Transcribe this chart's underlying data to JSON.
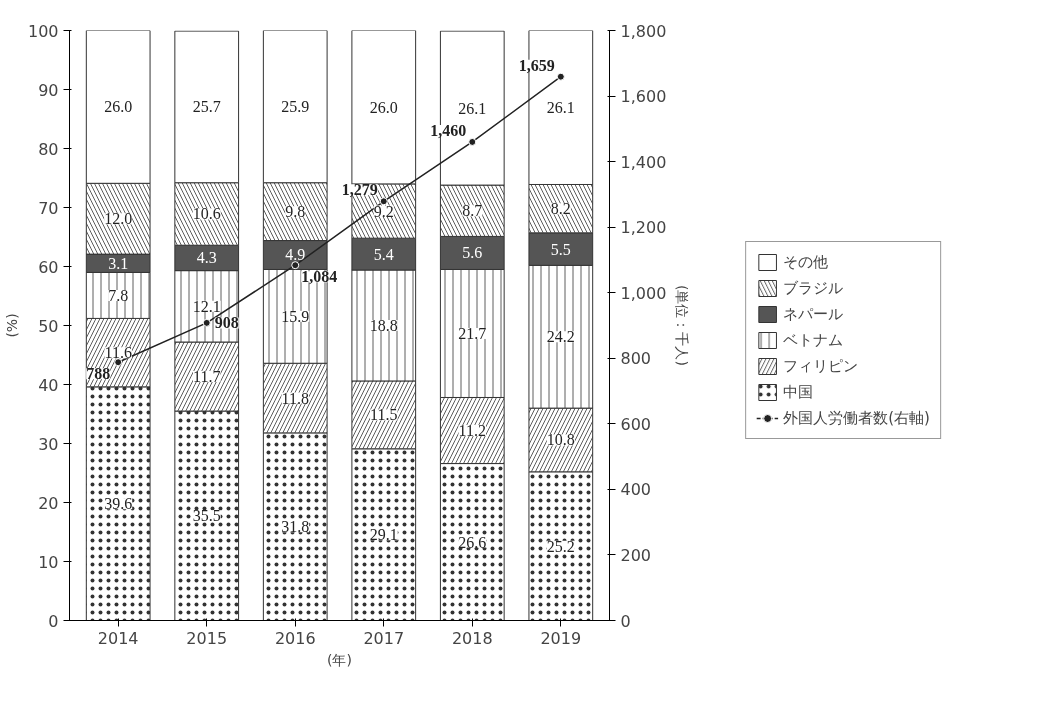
{
  "chart_data": {
    "type": "bar",
    "stacked": true,
    "categories": [
      "2014",
      "2015",
      "2016",
      "2017",
      "2018",
      "2019"
    ],
    "xlabel": "(年)",
    "ylabel": "(%)",
    "y2label": "(単位：千人)",
    "ylim": [
      0,
      100
    ],
    "yticks": [
      0,
      10,
      20,
      30,
      40,
      50,
      60,
      70,
      80,
      90,
      100
    ],
    "y2lim": [
      0,
      1800
    ],
    "y2ticks": [
      0,
      200,
      400,
      600,
      800,
      {
        "value": 1000,
        "label": "1,000"
      },
      {
        "value": 1200,
        "label": "1,200"
      },
      {
        "value": 1400,
        "label": "1,400"
      },
      {
        "value": 1600,
        "label": "1,600"
      },
      {
        "value": 1800,
        "label": "1,800"
      }
    ],
    "grid": false,
    "legend": "right",
    "data_labels": true,
    "series": [
      {
        "name": "中国",
        "color": "#ffffff",
        "values": [
          39.6,
          35.5,
          31.8,
          29.1,
          26.6,
          25.2
        ],
        "value_labels": [
          "39.6",
          "35.5",
          "31.8",
          "29.1",
          "26.6",
          "25.2"
        ]
      },
      {
        "name": "フィリピン",
        "color": "#ffffff",
        "values": [
          11.6,
          11.7,
          11.8,
          11.5,
          11.2,
          10.8
        ],
        "value_labels": [
          "11.6",
          "11.7",
          "11.8",
          "11.5",
          "11.2",
          "10.8"
        ]
      },
      {
        "name": "ベトナム",
        "color": "#ffffff",
        "values": [
          7.8,
          12.1,
          15.9,
          18.8,
          21.7,
          24.2
        ],
        "value_labels": [
          "7.8",
          "12.1",
          "15.9",
          "18.8",
          "21.7",
          "24.2"
        ]
      },
      {
        "name": "ネパール",
        "color": "#555555",
        "values": [
          3.1,
          4.3,
          4.9,
          5.4,
          5.6,
          5.5
        ],
        "value_labels": [
          "3.1",
          "4.3",
          "4.9",
          "5.4",
          "5.6",
          "5.5"
        ]
      },
      {
        "name": "ブラジル",
        "color": "#ffffff",
        "values": [
          12.0,
          10.6,
          9.8,
          9.2,
          8.7,
          8.2
        ],
        "value_labels": [
          "12.0",
          "10.6",
          "9.8",
          "9.2",
          "8.7",
          "8.2"
        ]
      },
      {
        "name": "その他",
        "color": "#ffffff",
        "values": [
          26.0,
          25.7,
          25.9,
          26.0,
          26.1,
          26.1
        ],
        "value_labels": [
          "26.0",
          "25.7",
          "25.9",
          "26.0",
          "26.1",
          "26.1"
        ]
      },
      {
        "name": "外国人労働者数(右軸)",
        "type": "line",
        "axis": "y2",
        "color": "#222222",
        "marker": "circle",
        "values": [
          788,
          908,
          1084,
          1279,
          1460,
          1659
        ],
        "value_labels": [
          "788",
          "908",
          "1,084",
          "1,279",
          "1,460",
          "1,659"
        ]
      }
    ]
  }
}
